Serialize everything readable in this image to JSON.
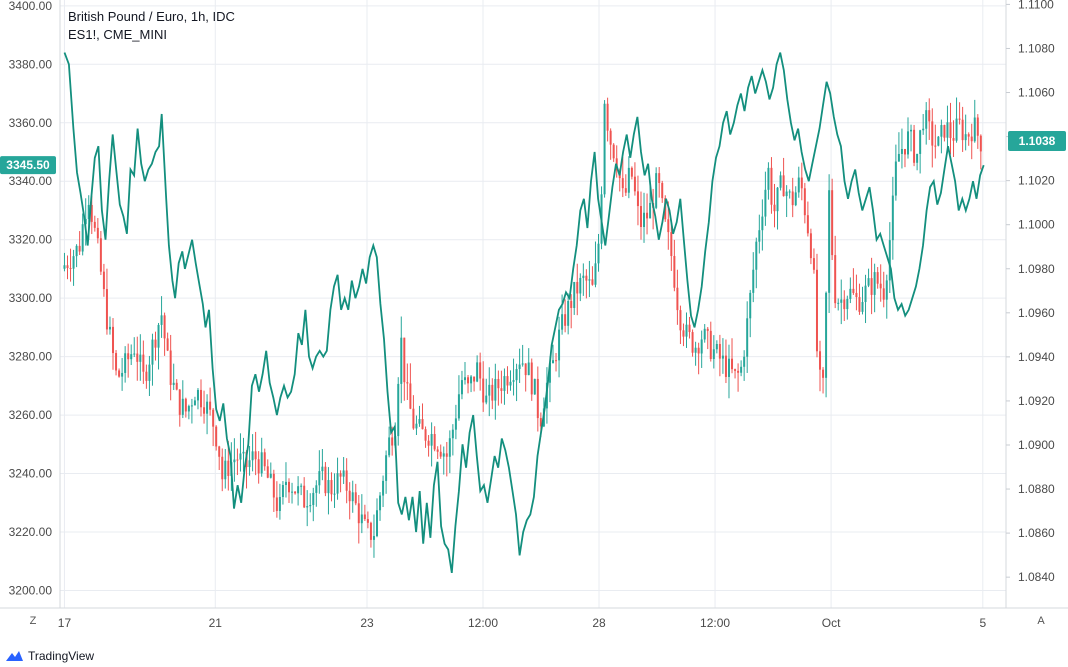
{
  "legend": {
    "title": "British Pound / Euro, 1h, IDC",
    "series2": "ES1!, CME_MINI"
  },
  "buttons": {
    "z_label": "Z",
    "a_label": "A"
  },
  "brand": {
    "name": "TradingView"
  },
  "colors": {
    "up": "#26a69a",
    "down": "#ef5350",
    "line": "#138f7e",
    "grid": "#e9ecf1",
    "price_badge": "#26a69a"
  },
  "chart_data": {
    "type": "line",
    "title": "British Pound / Euro, 1h, IDC",
    "left_axis": {
      "series": "ES1!, CME_MINI",
      "ticks": [
        "3400.00",
        "3380.00",
        "3360.00",
        "3340.00",
        "3320.00",
        "3300.00",
        "3280.00",
        "3260.00",
        "3240.00",
        "3220.00",
        "3200.00"
      ],
      "range": [
        3194,
        3402
      ],
      "current_value": "3345.50"
    },
    "right_axis": {
      "series": "British Pound / Euro, 1h, IDC",
      "ticks": [
        "1.1100",
        "1.1080",
        "1.1060",
        "1.1040",
        "1.1020",
        "1.1000",
        "1.0980",
        "1.0960",
        "1.0940",
        "1.0920",
        "1.0900",
        "1.0880",
        "1.0860",
        "1.0840"
      ],
      "range": [
        1.0826,
        1.1102
      ],
      "current_value": "1.1038"
    },
    "x_ticks": [
      {
        "label": "17",
        "t": 0
      },
      {
        "label": "21",
        "t": 1.69
      },
      {
        "label": "23",
        "t": 3.39
      },
      {
        "label": "12:00",
        "t": 4.69
      },
      {
        "label": "28",
        "t": 5.99
      },
      {
        "label": "12:00",
        "t": 7.29
      },
      {
        "label": "Oct",
        "t": 8.59
      },
      {
        "label": "5",
        "t": 10.29
      }
    ],
    "x_range": [
      -0.05,
      10.55
    ],
    "es_line": [
      [
        0.0,
        3384
      ],
      [
        0.05,
        3380
      ],
      [
        0.1,
        3358
      ],
      [
        0.14,
        3343
      ],
      [
        0.18,
        3336
      ],
      [
        0.22,
        3328
      ],
      [
        0.26,
        3318
      ],
      [
        0.3,
        3334
      ],
      [
        0.34,
        3348
      ],
      [
        0.38,
        3352
      ],
      [
        0.42,
        3330
      ],
      [
        0.46,
        3320
      ],
      [
        0.5,
        3340
      ],
      [
        0.54,
        3356
      ],
      [
        0.58,
        3344
      ],
      [
        0.62,
        3332
      ],
      [
        0.66,
        3328
      ],
      [
        0.7,
        3322
      ],
      [
        0.74,
        3344
      ],
      [
        0.78,
        3342
      ],
      [
        0.82,
        3358
      ],
      [
        0.86,
        3346
      ],
      [
        0.9,
        3340
      ],
      [
        0.94,
        3344
      ],
      [
        0.98,
        3346
      ],
      [
        1.02,
        3350
      ],
      [
        1.06,
        3352
      ],
      [
        1.09,
        3363
      ],
      [
        1.14,
        3334
      ],
      [
        1.17,
        3318
      ],
      [
        1.21,
        3306
      ],
      [
        1.24,
        3300
      ],
      [
        1.28,
        3312
      ],
      [
        1.32,
        3316
      ],
      [
        1.35,
        3310
      ],
      [
        1.39,
        3315
      ],
      [
        1.43,
        3320
      ],
      [
        1.47,
        3312
      ],
      [
        1.51,
        3305
      ],
      [
        1.55,
        3298
      ],
      [
        1.58,
        3290
      ],
      [
        1.62,
        3296
      ],
      [
        1.66,
        3276
      ],
      [
        1.7,
        3262
      ],
      [
        1.74,
        3258
      ],
      [
        1.78,
        3264
      ],
      [
        1.82,
        3252
      ],
      [
        1.86,
        3246
      ],
      [
        1.9,
        3228
      ],
      [
        1.94,
        3236
      ],
      [
        1.98,
        3230
      ],
      [
        2.02,
        3242
      ],
      [
        2.06,
        3250
      ],
      [
        2.1,
        3270
      ],
      [
        2.14,
        3274
      ],
      [
        2.18,
        3268
      ],
      [
        2.22,
        3274
      ],
      [
        2.26,
        3282
      ],
      [
        2.3,
        3271
      ],
      [
        2.34,
        3266
      ],
      [
        2.38,
        3260
      ],
      [
        2.42,
        3266
      ],
      [
        2.46,
        3270
      ],
      [
        2.5,
        3266
      ],
      [
        2.54,
        3268
      ],
      [
        2.58,
        3274
      ],
      [
        2.62,
        3288
      ],
      [
        2.66,
        3284
      ],
      [
        2.7,
        3296
      ],
      [
        2.74,
        3280
      ],
      [
        2.78,
        3276
      ],
      [
        2.82,
        3280
      ],
      [
        2.86,
        3282
      ],
      [
        2.9,
        3280
      ],
      [
        2.94,
        3282
      ],
      [
        2.98,
        3296
      ],
      [
        3.02,
        3304
      ],
      [
        3.06,
        3308
      ],
      [
        3.1,
        3296
      ],
      [
        3.14,
        3300
      ],
      [
        3.18,
        3296
      ],
      [
        3.22,
        3306
      ],
      [
        3.26,
        3300
      ],
      [
        3.3,
        3304
      ],
      [
        3.34,
        3310
      ],
      [
        3.38,
        3305
      ],
      [
        3.42,
        3314
      ],
      [
        3.46,
        3318
      ],
      [
        3.5,
        3314
      ],
      [
        3.54,
        3298
      ],
      [
        3.58,
        3286
      ],
      [
        3.62,
        3268
      ],
      [
        3.66,
        3254
      ],
      [
        3.7,
        3256
      ],
      [
        3.74,
        3230
      ],
      [
        3.78,
        3226
      ],
      [
        3.82,
        3232
      ],
      [
        3.86,
        3224
      ],
      [
        3.9,
        3232
      ],
      [
        3.94,
        3220
      ],
      [
        3.98,
        3234
      ],
      [
        4.02,
        3216
      ],
      [
        4.06,
        3230
      ],
      [
        4.1,
        3218
      ],
      [
        4.14,
        3236
      ],
      [
        4.18,
        3244
      ],
      [
        4.22,
        3222
      ],
      [
        4.26,
        3216
      ],
      [
        4.3,
        3214
      ],
      [
        4.34,
        3206
      ],
      [
        4.38,
        3222
      ],
      [
        4.42,
        3234
      ],
      [
        4.46,
        3250
      ],
      [
        4.5,
        3242
      ],
      [
        4.54,
        3254
      ],
      [
        4.58,
        3260
      ],
      [
        4.62,
        3246
      ],
      [
        4.66,
        3234
      ],
      [
        4.7,
        3236
      ],
      [
        4.74,
        3230
      ],
      [
        4.78,
        3238
      ],
      [
        4.82,
        3246
      ],
      [
        4.86,
        3242
      ],
      [
        4.9,
        3252
      ],
      [
        4.94,
        3248
      ],
      [
        4.98,
        3242
      ],
      [
        5.02,
        3234
      ],
      [
        5.06,
        3226
      ],
      [
        5.1,
        3212
      ],
      [
        5.14,
        3220
      ],
      [
        5.18,
        3224
      ],
      [
        5.22,
        3226
      ],
      [
        5.26,
        3232
      ],
      [
        5.3,
        3246
      ],
      [
        5.34,
        3254
      ],
      [
        5.38,
        3262
      ],
      [
        5.42,
        3272
      ],
      [
        5.46,
        3284
      ],
      [
        5.5,
        3290
      ],
      [
        5.54,
        3296
      ],
      [
        5.58,
        3298
      ],
      [
        5.62,
        3302
      ],
      [
        5.66,
        3300
      ],
      [
        5.7,
        3310
      ],
      [
        5.74,
        3318
      ],
      [
        5.78,
        3330
      ],
      [
        5.82,
        3334
      ],
      [
        5.86,
        3324
      ],
      [
        5.9,
        3340
      ],
      [
        5.94,
        3350
      ],
      [
        5.98,
        3334
      ],
      [
        6.02,
        3326
      ],
      [
        6.06,
        3318
      ],
      [
        6.1,
        3328
      ],
      [
        6.14,
        3338
      ],
      [
        6.18,
        3346
      ],
      [
        6.22,
        3342
      ],
      [
        6.26,
        3350
      ],
      [
        6.3,
        3356
      ],
      [
        6.34,
        3348
      ],
      [
        6.38,
        3356
      ],
      [
        6.42,
        3362
      ],
      [
        6.46,
        3350
      ],
      [
        6.5,
        3342
      ],
      [
        6.54,
        3346
      ],
      [
        6.58,
        3334
      ],
      [
        6.62,
        3328
      ],
      [
        6.66,
        3320
      ],
      [
        6.7,
        3326
      ],
      [
        6.74,
        3334
      ],
      [
        6.78,
        3330
      ],
      [
        6.82,
        3322
      ],
      [
        6.86,
        3326
      ],
      [
        6.9,
        3334
      ],
      [
        6.94,
        3320
      ],
      [
        6.98,
        3306
      ],
      [
        7.02,
        3294
      ],
      [
        7.06,
        3290
      ],
      [
        7.1,
        3296
      ],
      [
        7.14,
        3304
      ],
      [
        7.18,
        3316
      ],
      [
        7.22,
        3326
      ],
      [
        7.26,
        3340
      ],
      [
        7.3,
        3348
      ],
      [
        7.34,
        3352
      ],
      [
        7.38,
        3360
      ],
      [
        7.42,
        3364
      ],
      [
        7.46,
        3356
      ],
      [
        7.5,
        3360
      ],
      [
        7.54,
        3366
      ],
      [
        7.58,
        3370
      ],
      [
        7.62,
        3364
      ],
      [
        7.66,
        3372
      ],
      [
        7.7,
        3376
      ],
      [
        7.74,
        3370
      ],
      [
        7.78,
        3374
      ],
      [
        7.82,
        3378
      ],
      [
        7.86,
        3374
      ],
      [
        7.9,
        3368
      ],
      [
        7.94,
        3372
      ],
      [
        7.98,
        3380
      ],
      [
        8.02,
        3384
      ],
      [
        8.06,
        3378
      ],
      [
        8.1,
        3368
      ],
      [
        8.14,
        3360
      ],
      [
        8.18,
        3354
      ],
      [
        8.22,
        3358
      ],
      [
        8.26,
        3350
      ],
      [
        8.3,
        3344
      ],
      [
        8.34,
        3340
      ],
      [
        8.38,
        3346
      ],
      [
        8.42,
        3352
      ],
      [
        8.46,
        3358
      ],
      [
        8.5,
        3366
      ],
      [
        8.54,
        3374
      ],
      [
        8.58,
        3370
      ],
      [
        8.62,
        3362
      ],
      [
        8.66,
        3356
      ],
      [
        8.7,
        3352
      ],
      [
        8.74,
        3340
      ],
      [
        8.78,
        3334
      ],
      [
        8.82,
        3340
      ],
      [
        8.86,
        3344
      ],
      [
        8.9,
        3336
      ],
      [
        8.94,
        3330
      ],
      [
        8.98,
        3334
      ],
      [
        9.02,
        3338
      ],
      [
        9.06,
        3330
      ],
      [
        9.1,
        3320
      ],
      [
        9.14,
        3322
      ],
      [
        9.18,
        3318
      ],
      [
        9.22,
        3314
      ],
      [
        9.26,
        3310
      ],
      [
        9.3,
        3300
      ],
      [
        9.34,
        3296
      ],
      [
        9.38,
        3298
      ],
      [
        9.42,
        3294
      ],
      [
        9.46,
        3296
      ],
      [
        9.5,
        3300
      ],
      [
        9.54,
        3304
      ],
      [
        9.58,
        3310
      ],
      [
        9.62,
        3318
      ],
      [
        9.66,
        3330
      ],
      [
        9.7,
        3338
      ],
      [
        9.74,
        3340
      ],
      [
        9.78,
        3332
      ],
      [
        9.82,
        3336
      ],
      [
        9.86,
        3344
      ],
      [
        9.9,
        3352
      ],
      [
        9.94,
        3346
      ],
      [
        9.98,
        3340
      ],
      [
        10.02,
        3330
      ],
      [
        10.06,
        3334
      ],
      [
        10.1,
        3330
      ],
      [
        10.14,
        3334
      ],
      [
        10.18,
        3340
      ],
      [
        10.22,
        3334
      ],
      [
        10.26,
        3342
      ],
      [
        10.3,
        3345.5
      ]
    ],
    "gbp_anchors": [
      [
        0.0,
        1.098
      ],
      [
        0.2,
        1.099
      ],
      [
        0.3,
        1.1015
      ],
      [
        0.42,
        1.0985
      ],
      [
        0.5,
        1.096
      ],
      [
        0.62,
        1.093
      ],
      [
        0.7,
        1.0935
      ],
      [
        0.82,
        1.0945
      ],
      [
        0.92,
        1.093
      ],
      [
        1.02,
        1.0945
      ],
      [
        1.12,
        1.096
      ],
      [
        1.2,
        1.0935
      ],
      [
        1.3,
        1.092
      ],
      [
        1.4,
        1.0915
      ],
      [
        1.5,
        1.0925
      ],
      [
        1.6,
        1.092
      ],
      [
        1.7,
        1.091
      ],
      [
        1.76,
        1.09
      ],
      [
        1.8,
        1.0885
      ],
      [
        1.86,
        1.089
      ],
      [
        1.96,
        1.0895
      ],
      [
        2.06,
        1.089
      ],
      [
        2.16,
        1.0895
      ],
      [
        2.26,
        1.089
      ],
      [
        2.36,
        1.088
      ],
      [
        2.44,
        1.087
      ],
      [
        2.52,
        1.0885
      ],
      [
        2.62,
        1.088
      ],
      [
        2.72,
        1.0875
      ],
      [
        2.82,
        1.088
      ],
      [
        2.92,
        1.0885
      ],
      [
        3.02,
        1.088
      ],
      [
        3.12,
        1.0885
      ],
      [
        3.22,
        1.088
      ],
      [
        3.32,
        1.087
      ],
      [
        3.42,
        1.086
      ],
      [
        3.5,
        1.086
      ],
      [
        3.58,
        1.088
      ],
      [
        3.66,
        1.09
      ],
      [
        3.74,
        1.091
      ],
      [
        3.8,
        1.095
      ],
      [
        3.86,
        1.0925
      ],
      [
        3.94,
        1.091
      ],
      [
        4.04,
        1.0905
      ],
      [
        4.14,
        1.0905
      ],
      [
        4.24,
        1.09
      ],
      [
        4.32,
        1.0895
      ],
      [
        4.4,
        1.091
      ],
      [
        4.48,
        1.093
      ],
      [
        4.56,
        1.0925
      ],
      [
        4.66,
        1.0935
      ],
      [
        4.76,
        1.092
      ],
      [
        4.86,
        1.0925
      ],
      [
        4.96,
        1.093
      ],
      [
        5.06,
        1.0935
      ],
      [
        5.14,
        1.094
      ],
      [
        5.22,
        1.0935
      ],
      [
        5.3,
        1.0925
      ],
      [
        5.36,
        1.091
      ],
      [
        5.42,
        1.0925
      ],
      [
        5.5,
        1.0935
      ],
      [
        5.58,
        1.095
      ],
      [
        5.66,
        1.096
      ],
      [
        5.76,
        1.097
      ],
      [
        5.86,
        1.0975
      ],
      [
        5.96,
        1.097
      ],
      [
        6.04,
        1.1
      ],
      [
        6.08,
        1.106
      ],
      [
        6.14,
        1.104
      ],
      [
        6.22,
        1.103
      ],
      [
        6.3,
        1.101
      ],
      [
        6.38,
        1.1025
      ],
      [
        6.48,
        1.1
      ],
      [
        6.58,
        1.1005
      ],
      [
        6.68,
        1.102
      ],
      [
        6.76,
        1.1
      ],
      [
        6.84,
        1.0985
      ],
      [
        6.92,
        1.096
      ],
      [
        7.0,
        1.095
      ],
      [
        7.1,
        1.0945
      ],
      [
        7.18,
        1.095
      ],
      [
        7.26,
        1.0945
      ],
      [
        7.36,
        1.094
      ],
      [
        7.46,
        1.0935
      ],
      [
        7.56,
        1.093
      ],
      [
        7.62,
        1.0935
      ],
      [
        7.7,
        1.096
      ],
      [
        7.78,
        1.099
      ],
      [
        7.86,
        1.101
      ],
      [
        7.92,
        1.1025
      ],
      [
        7.98,
        1.1005
      ],
      [
        8.08,
        1.102
      ],
      [
        8.18,
        1.101
      ],
      [
        8.28,
        1.102
      ],
      [
        8.36,
        1.1
      ],
      [
        8.42,
        1.0985
      ],
      [
        8.48,
        1.093
      ],
      [
        8.54,
        1.0925
      ],
      [
        8.6,
        1.1015
      ],
      [
        8.66,
        1.097
      ],
      [
        8.72,
        1.0965
      ],
      [
        8.82,
        1.097
      ],
      [
        8.92,
        1.0965
      ],
      [
        9.02,
        1.097
      ],
      [
        9.12,
        1.0975
      ],
      [
        9.22,
        1.097
      ],
      [
        9.3,
        1.1
      ],
      [
        9.36,
        1.103
      ],
      [
        9.42,
        1.1035
      ],
      [
        9.5,
        1.104
      ],
      [
        9.58,
        1.103
      ],
      [
        9.66,
        1.105
      ],
      [
        9.74,
        1.104
      ],
      [
        9.82,
        1.1035
      ],
      [
        9.9,
        1.1045
      ],
      [
        9.98,
        1.104
      ],
      [
        10.06,
        1.1045
      ],
      [
        10.14,
        1.104
      ],
      [
        10.22,
        1.1045
      ],
      [
        10.3,
        1.1038
      ]
    ]
  }
}
